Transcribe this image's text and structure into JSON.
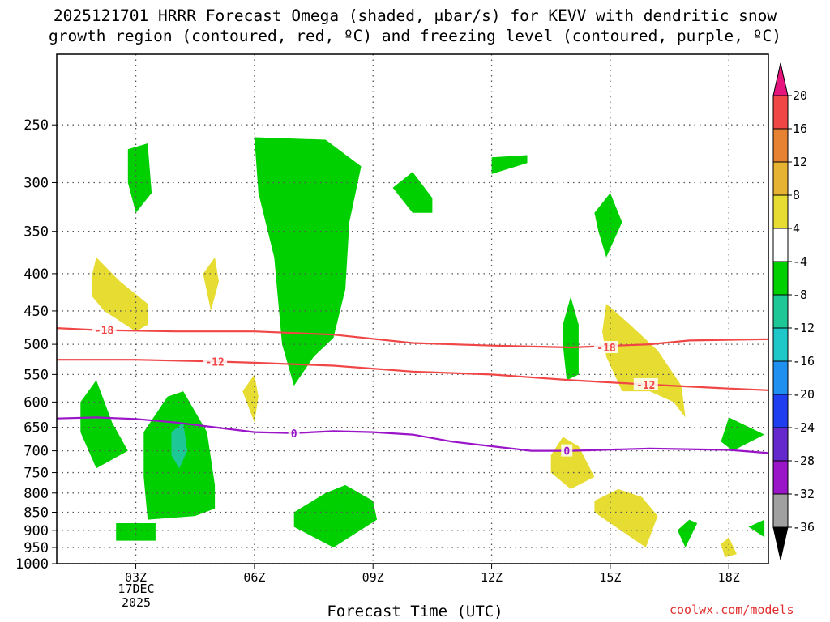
{
  "page": {
    "title_line1": "2025121701 HRRR Forecast Omega (shaded, μbar/s) for KEVV with dendritic snow",
    "title_line2": "growth region (contoured, red, ºC) and freezing level (contoured, purple, ºC)",
    "x_axis_title": "Forecast Time (UTC)",
    "credit": "coolwx.com/models",
    "date_line1": "17DEC",
    "date_line2": "2025"
  },
  "chart_data": {
    "type": "heatmap",
    "title": "2025121701 HRRR Forecast Omega (shaded, μbar/s) for KEVV with dendritic snow growth region (contoured, red, ºC) and freezing level (contoured, purple, ºC)",
    "xlabel": "Forecast Time (UTC)",
    "ylabel": "",
    "y_scale": "log",
    "y_reversed": true,
    "xlim": [
      1,
      19
    ],
    "ylim": [
      1000,
      200
    ],
    "x_ticks": [
      3,
      6,
      9,
      12,
      15,
      18
    ],
    "x_tick_labels": [
      "03Z",
      "06Z",
      "09Z",
      "12Z",
      "15Z",
      "18Z"
    ],
    "y_ticks": [
      250,
      300,
      350,
      400,
      450,
      500,
      550,
      600,
      650,
      700,
      750,
      800,
      850,
      900,
      950,
      1000
    ],
    "grid": true,
    "colorbar": {
      "levels": [
        -36,
        -32,
        -28,
        -24,
        -20,
        -16,
        -12,
        -8,
        -4,
        4,
        8,
        12,
        16,
        20
      ],
      "colors": [
        "#000000",
        "#a0a0a0",
        "#9a14c8",
        "#6428cc",
        "#1e3ef0",
        "#1e90f0",
        "#1ec8c8",
        "#1ec896",
        "#00d000",
        "#ffffff",
        "#e6dc32",
        "#e6b432",
        "#e68232",
        "#f04646",
        "#e6147d"
      ],
      "tick_labels": [
        "-36",
        "-32",
        "-28",
        "-24",
        "-20",
        "-16",
        "-12",
        "-8",
        "-4",
        "4",
        "8",
        "12",
        "16",
        "20"
      ]
    },
    "omega_regions": [
      {
        "class": "-8 to -4",
        "color": "#00d000",
        "polygon": [
          [
            1.6,
            600
          ],
          [
            2.0,
            560
          ],
          [
            2.4,
            640
          ],
          [
            2.8,
            700
          ],
          [
            2.0,
            740
          ],
          [
            1.6,
            660
          ]
        ]
      },
      {
        "class": "-8 to -4",
        "color": "#00d000",
        "polygon": [
          [
            2.8,
            270
          ],
          [
            3.3,
            265
          ],
          [
            3.4,
            310
          ],
          [
            3.0,
            330
          ],
          [
            2.8,
            300
          ]
        ]
      },
      {
        "class": "-8 to -4",
        "color": "#00d000",
        "polygon": [
          [
            2.5,
            880
          ],
          [
            3.5,
            880
          ],
          [
            3.5,
            930
          ],
          [
            2.5,
            930
          ]
        ]
      },
      {
        "class": "-8 to -4",
        "color": "#00d000",
        "polygon": [
          [
            3.2,
            660
          ],
          [
            3.8,
            590
          ],
          [
            4.2,
            580
          ],
          [
            4.8,
            660
          ],
          [
            5.0,
            780
          ],
          [
            5.0,
            840
          ],
          [
            4.5,
            860
          ],
          [
            3.3,
            870
          ],
          [
            3.2,
            760
          ]
        ]
      },
      {
        "class": "-12 to -8",
        "color": "#1ec896",
        "polygon": [
          [
            3.9,
            660
          ],
          [
            4.2,
            640
          ],
          [
            4.3,
            700
          ],
          [
            4.1,
            740
          ],
          [
            3.9,
            710
          ]
        ]
      },
      {
        "class": "-8 to -4",
        "color": "#00d000",
        "polygon": [
          [
            6.0,
            260
          ],
          [
            7.8,
            262
          ],
          [
            8.7,
            285
          ],
          [
            8.4,
            340
          ],
          [
            8.3,
            420
          ],
          [
            8.0,
            490
          ],
          [
            7.5,
            520
          ],
          [
            7.0,
            570
          ],
          [
            6.7,
            500
          ],
          [
            6.5,
            380
          ],
          [
            6.1,
            310
          ]
        ]
      },
      {
        "class": "-8 to -4",
        "color": "#00d000",
        "polygon": [
          [
            7.0,
            850
          ],
          [
            7.8,
            800
          ],
          [
            8.3,
            780
          ],
          [
            9.0,
            820
          ],
          [
            9.1,
            870
          ],
          [
            8.0,
            950
          ],
          [
            7.0,
            890
          ]
        ]
      },
      {
        "class": "-8 to -4",
        "color": "#00d000",
        "polygon": [
          [
            9.5,
            305
          ],
          [
            10.0,
            290
          ],
          [
            10.5,
            315
          ],
          [
            10.5,
            330
          ],
          [
            10.0,
            330
          ]
        ]
      },
      {
        "class": "-8 to -4",
        "color": "#00d000",
        "polygon": [
          [
            12.0,
            277
          ],
          [
            12.9,
            275
          ],
          [
            12.9,
            282
          ],
          [
            12.0,
            292
          ]
        ]
      },
      {
        "class": "-8 to -4",
        "color": "#00d000",
        "polygon": [
          [
            13.8,
            470
          ],
          [
            14.0,
            430
          ],
          [
            14.2,
            470
          ],
          [
            14.2,
            550
          ],
          [
            13.9,
            560
          ],
          [
            13.8,
            500
          ]
        ]
      },
      {
        "class": "-8 to -4",
        "color": "#00d000",
        "polygon": [
          [
            14.6,
            330
          ],
          [
            15.0,
            310
          ],
          [
            15.3,
            340
          ],
          [
            14.9,
            380
          ],
          [
            14.7,
            350
          ]
        ]
      },
      {
        "class": "-8 to -4",
        "color": "#00d000",
        "polygon": [
          [
            17.8,
            680
          ],
          [
            18.0,
            630
          ],
          [
            18.9,
            665
          ],
          [
            18.1,
            700
          ]
        ]
      },
      {
        "class": "-8 to -4",
        "color": "#00d000",
        "polygon": [
          [
            16.7,
            900
          ],
          [
            17.0,
            870
          ],
          [
            17.2,
            880
          ],
          [
            16.9,
            950
          ]
        ]
      },
      {
        "class": "-8 to -4",
        "color": "#00d000",
        "polygon": [
          [
            18.5,
            890
          ],
          [
            18.9,
            870
          ],
          [
            18.9,
            920
          ]
        ]
      },
      {
        "class": "4 to 8",
        "color": "#e6dc32",
        "polygon": [
          [
            1.9,
            400
          ],
          [
            2.0,
            380
          ],
          [
            2.6,
            410
          ],
          [
            3.3,
            440
          ],
          [
            3.3,
            470
          ],
          [
            3.0,
            480
          ],
          [
            2.2,
            450
          ],
          [
            1.9,
            430
          ]
        ]
      },
      {
        "class": "4 to 8",
        "color": "#e6dc32",
        "polygon": [
          [
            4.7,
            400
          ],
          [
            5.0,
            380
          ],
          [
            5.1,
            410
          ],
          [
            4.9,
            450
          ]
        ]
      },
      {
        "class": "4 to 8",
        "color": "#e6dc32",
        "polygon": [
          [
            5.7,
            580
          ],
          [
            6.0,
            550
          ],
          [
            6.1,
            590
          ],
          [
            6.0,
            640
          ]
        ]
      },
      {
        "class": "4 to 8",
        "color": "#e6dc32",
        "polygon": [
          [
            13.5,
            710
          ],
          [
            13.8,
            670
          ],
          [
            14.2,
            690
          ],
          [
            14.6,
            760
          ],
          [
            14.0,
            790
          ],
          [
            13.5,
            750
          ]
        ]
      },
      {
        "class": "4 to 8",
        "color": "#e6dc32",
        "polygon": [
          [
            14.9,
            440
          ],
          [
            15.5,
            470
          ],
          [
            16.2,
            510
          ],
          [
            16.8,
            570
          ],
          [
            16.9,
            630
          ],
          [
            16.6,
            600
          ],
          [
            16.0,
            580
          ],
          [
            15.3,
            580
          ],
          [
            14.9,
            520
          ],
          [
            14.8,
            480
          ]
        ]
      },
      {
        "class": "4 to 8",
        "color": "#e6dc32",
        "polygon": [
          [
            14.6,
            820
          ],
          [
            15.2,
            790
          ],
          [
            15.8,
            810
          ],
          [
            16.2,
            860
          ],
          [
            15.9,
            950
          ],
          [
            15.0,
            880
          ],
          [
            14.6,
            850
          ]
        ]
      },
      {
        "class": "4 to 8",
        "color": "#e6dc32",
        "polygon": [
          [
            17.8,
            940
          ],
          [
            18.0,
            920
          ],
          [
            18.2,
            970
          ],
          [
            17.9,
            980
          ]
        ]
      }
    ],
    "series": [
      {
        "name": "-18",
        "color": "#f04646",
        "x": [
          1,
          2,
          4,
          6,
          8,
          10,
          12,
          14,
          16,
          17,
          19
        ],
        "y": [
          475,
          478,
          480,
          480,
          485,
          498,
          502,
          505,
          500,
          494,
          492
        ]
      },
      {
        "name": "-12",
        "color": "#f04646",
        "x": [
          1,
          3,
          5,
          6,
          8,
          10,
          12,
          14,
          16,
          18,
          19
        ],
        "y": [
          525,
          525,
          528,
          530,
          535,
          545,
          550,
          560,
          568,
          575,
          578
        ]
      },
      {
        "name": "0",
        "color": "#9a14c8",
        "x": [
          1,
          2,
          3,
          4,
          5,
          6,
          7,
          8,
          9,
          10,
          11,
          12,
          13,
          14,
          16,
          18,
          19
        ],
        "y": [
          632,
          630,
          633,
          640,
          650,
          660,
          662,
          658,
          660,
          665,
          680,
          690,
          700,
          700,
          695,
          698,
          705
        ]
      }
    ],
    "contour_labels": [
      {
        "text": "-18",
        "x": 2.2,
        "y": 478,
        "color": "#f04646"
      },
      {
        "text": "-12",
        "x": 5.0,
        "y": 528,
        "color": "#f04646"
      },
      {
        "text": "-18",
        "x": 14.9,
        "y": 505,
        "color": "#f04646"
      },
      {
        "text": "-12",
        "x": 15.9,
        "y": 568,
        "color": "#f04646"
      },
      {
        "text": "0",
        "x": 7.0,
        "y": 662,
        "color": "#9a14c8"
      },
      {
        "text": "0",
        "x": 13.9,
        "y": 700,
        "color": "#9a14c8"
      }
    ],
    "ground_pressure": 1000,
    "ground_color": "#a0522d"
  }
}
